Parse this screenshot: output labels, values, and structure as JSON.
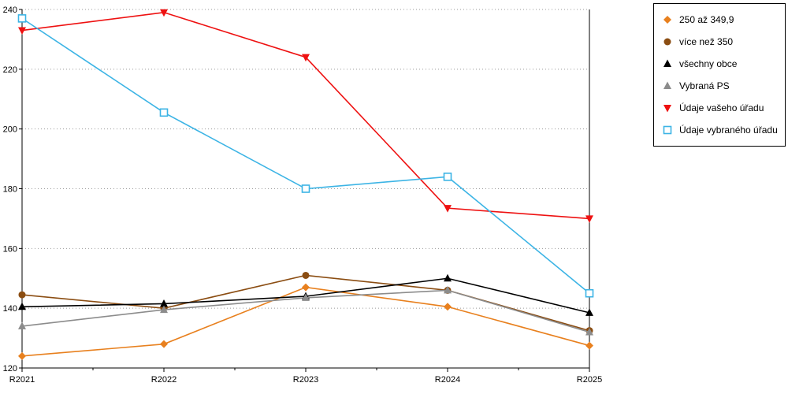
{
  "chart_data": {
    "type": "line",
    "title": "",
    "xlabel": "",
    "ylabel": "",
    "x": [
      "R2021",
      "R2022",
      "R2023",
      "R2024",
      "R2025"
    ],
    "ylim": [
      120,
      240
    ],
    "ytick_step": 20,
    "grid": "horizontal-dotted",
    "legend_position": "top-right",
    "series": [
      {
        "name": "250 až 349,9",
        "color": "#E8801E",
        "marker": "diamond",
        "values": [
          124,
          128,
          147,
          140.5,
          127.5
        ]
      },
      {
        "name": "více než 350",
        "color": "#8B4D12",
        "marker": "circle",
        "values": [
          144.5,
          140,
          151,
          146,
          132.5
        ]
      },
      {
        "name": "všechny obce",
        "color": "#000000",
        "marker": "triangle-up",
        "values": [
          140.5,
          141.5,
          144,
          150,
          138.5
        ]
      },
      {
        "name": "Vybraná PS",
        "color": "#8C8C8C",
        "marker": "triangle-up",
        "values": [
          134,
          139.5,
          143.5,
          146,
          132
        ]
      },
      {
        "name": "Údaje vašeho úřadu",
        "color": "#EE1111",
        "marker": "triangle-down",
        "values": [
          233,
          239,
          224,
          173.5,
          170
        ]
      },
      {
        "name": "Údaje vybraného úřadu",
        "color": "#3CB4E5",
        "marker": "square-open",
        "values": [
          237,
          205.5,
          180,
          184,
          145
        ]
      }
    ]
  }
}
